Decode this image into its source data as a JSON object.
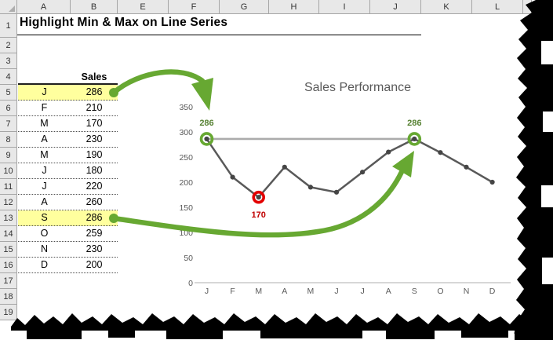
{
  "sheet": {
    "column_letters": [
      "A",
      "B",
      "E",
      "F",
      "G",
      "H",
      "I",
      "J",
      "K",
      "L"
    ],
    "row_numbers": [
      "1",
      "2",
      "3",
      "4",
      "5",
      "6",
      "7",
      "8",
      "9",
      "10",
      "11",
      "12",
      "13",
      "14",
      "15",
      "16",
      "17",
      "18",
      "19"
    ],
    "title": "Highlight Min & Max on Line Series",
    "table": {
      "header": "Sales",
      "months": [
        "J",
        "F",
        "M",
        "A",
        "M",
        "J",
        "J",
        "A",
        "S",
        "O",
        "N",
        "D"
      ],
      "values": [
        286,
        210,
        170,
        230,
        190,
        180,
        220,
        260,
        286,
        259,
        230,
        200
      ],
      "highlighted_rows": [
        0,
        8
      ],
      "highlight_color": "#FFFF9E"
    }
  },
  "chart_data": {
    "type": "line",
    "title": "Sales Performance",
    "categories": [
      "J",
      "F",
      "M",
      "A",
      "M",
      "J",
      "J",
      "A",
      "S",
      "O",
      "N",
      "D"
    ],
    "values": [
      286,
      210,
      170,
      230,
      190,
      180,
      220,
      260,
      286,
      259,
      230,
      200
    ],
    "ylim": [
      0,
      350
    ],
    "ytick_step": 50,
    "yticks": [
      "0",
      "50",
      "100",
      "150",
      "200",
      "250",
      "300",
      "350"
    ],
    "grid": false,
    "legend": "none",
    "annotations": {
      "max_label": "286",
      "min_label": "170",
      "max_connector": true
    },
    "colors": {
      "series": "#595959",
      "marker": "#454545",
      "max_connector": "#ABABAB",
      "max_ring": "#67A832",
      "min_ring": "#E30000",
      "max_text": "#578233",
      "min_text": "#C00000",
      "arrow": "#67A832",
      "axis_line": "#BFBFBF",
      "axis_text": "#595959",
      "title_text": "#595959"
    }
  }
}
